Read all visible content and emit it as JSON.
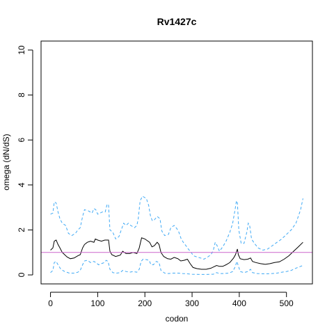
{
  "chart_data": {
    "type": "line",
    "title": "Rv1427c",
    "xlabel": "codon",
    "ylabel": "omega (dN/dS)",
    "xlim": [
      -20,
      555
    ],
    "ylim": [
      -0.4,
      10.4
    ],
    "xticks": [
      0,
      100,
      200,
      300,
      400,
      500
    ],
    "yticks": [
      0,
      2,
      4,
      6,
      8,
      10
    ],
    "reference_line": {
      "y": 1,
      "color": "#cc66cc"
    },
    "series": [
      {
        "role": "estimate",
        "color": "#000000",
        "dash": "solid",
        "points": [
          [
            0,
            1.1
          ],
          [
            5,
            1.2
          ],
          [
            8,
            1.5
          ],
          [
            12,
            1.55
          ],
          [
            16,
            1.35
          ],
          [
            20,
            1.2
          ],
          [
            25,
            1.0
          ],
          [
            30,
            0.9
          ],
          [
            35,
            0.8
          ],
          [
            42,
            0.72
          ],
          [
            50,
            0.75
          ],
          [
            58,
            0.85
          ],
          [
            63,
            0.9
          ],
          [
            68,
            1.2
          ],
          [
            72,
            1.35
          ],
          [
            78,
            1.45
          ],
          [
            85,
            1.5
          ],
          [
            92,
            1.45
          ],
          [
            95,
            1.6
          ],
          [
            100,
            1.55
          ],
          [
            108,
            1.5
          ],
          [
            115,
            1.55
          ],
          [
            120,
            1.55
          ],
          [
            123,
            1.55
          ],
          [
            126,
            1.05
          ],
          [
            130,
            0.9
          ],
          [
            138,
            0.82
          ],
          [
            143,
            0.85
          ],
          [
            148,
            0.88
          ],
          [
            153,
            1.05
          ],
          [
            160,
            0.95
          ],
          [
            168,
            0.95
          ],
          [
            175,
            1.0
          ],
          [
            183,
            0.95
          ],
          [
            188,
            1.2
          ],
          [
            193,
            1.65
          ],
          [
            200,
            1.6
          ],
          [
            210,
            1.45
          ],
          [
            215,
            1.25
          ],
          [
            220,
            1.3
          ],
          [
            226,
            1.45
          ],
          [
            230,
            1.35
          ],
          [
            234,
            1.0
          ],
          [
            240,
            0.82
          ],
          [
            248,
            0.72
          ],
          [
            255,
            0.7
          ],
          [
            262,
            0.78
          ],
          [
            270,
            0.72
          ],
          [
            276,
            0.62
          ],
          [
            283,
            0.65
          ],
          [
            290,
            0.7
          ],
          [
            296,
            0.5
          ],
          [
            302,
            0.33
          ],
          [
            310,
            0.28
          ],
          [
            320,
            0.25
          ],
          [
            330,
            0.25
          ],
          [
            340,
            0.3
          ],
          [
            348,
            0.38
          ],
          [
            352,
            0.42
          ],
          [
            358,
            0.38
          ],
          [
            365,
            0.38
          ],
          [
            372,
            0.45
          ],
          [
            380,
            0.55
          ],
          [
            388,
            0.75
          ],
          [
            392,
            0.9
          ],
          [
            396,
            1.15
          ],
          [
            398,
            0.9
          ],
          [
            402,
            0.72
          ],
          [
            410,
            0.68
          ],
          [
            418,
            0.7
          ],
          [
            424,
            0.75
          ],
          [
            428,
            0.6
          ],
          [
            435,
            0.55
          ],
          [
            445,
            0.5
          ],
          [
            455,
            0.47
          ],
          [
            465,
            0.5
          ],
          [
            475,
            0.55
          ],
          [
            485,
            0.58
          ],
          [
            495,
            0.7
          ],
          [
            505,
            0.85
          ],
          [
            515,
            1.05
          ],
          [
            525,
            1.25
          ],
          [
            535,
            1.45
          ]
        ]
      },
      {
        "role": "upper",
        "color": "#3fa9f5",
        "dash": "dashed",
        "points": [
          [
            0,
            2.7
          ],
          [
            5,
            2.75
          ],
          [
            8,
            3.25
          ],
          [
            12,
            3.2
          ],
          [
            16,
            2.8
          ],
          [
            20,
            2.5
          ],
          [
            25,
            2.3
          ],
          [
            32,
            2.2
          ],
          [
            38,
            1.85
          ],
          [
            45,
            1.75
          ],
          [
            53,
            1.85
          ],
          [
            58,
            2.0
          ],
          [
            63,
            2.1
          ],
          [
            68,
            2.6
          ],
          [
            72,
            2.9
          ],
          [
            80,
            2.85
          ],
          [
            88,
            2.75
          ],
          [
            92,
            2.95
          ],
          [
            96,
            2.9
          ],
          [
            100,
            2.7
          ],
          [
            110,
            2.8
          ],
          [
            116,
            2.8
          ],
          [
            120,
            3.15
          ],
          [
            123,
            3.1
          ],
          [
            126,
            2.0
          ],
          [
            132,
            1.9
          ],
          [
            138,
            1.6
          ],
          [
            145,
            1.7
          ],
          [
            150,
            2.0
          ],
          [
            155,
            2.3
          ],
          [
            160,
            2.2
          ],
          [
            165,
            2.3
          ],
          [
            170,
            2.2
          ],
          [
            178,
            2.1
          ],
          [
            183,
            2.2
          ],
          [
            186,
            2.5
          ],
          [
            190,
            3.3
          ],
          [
            195,
            3.5
          ],
          [
            203,
            3.4
          ],
          [
            208,
            3.1
          ],
          [
            212,
            2.6
          ],
          [
            216,
            2.4
          ],
          [
            220,
            2.45
          ],
          [
            226,
            2.6
          ],
          [
            232,
            2.5
          ],
          [
            236,
            1.95
          ],
          [
            242,
            1.75
          ],
          [
            250,
            1.8
          ],
          [
            255,
            2.1
          ],
          [
            262,
            2.2
          ],
          [
            268,
            2.05
          ],
          [
            272,
            1.9
          ],
          [
            277,
            1.6
          ],
          [
            283,
            1.4
          ],
          [
            287,
            1.3
          ],
          [
            292,
            1.15
          ],
          [
            298,
            1.0
          ],
          [
            303,
            0.85
          ],
          [
            310,
            0.8
          ],
          [
            318,
            0.75
          ],
          [
            325,
            0.7
          ],
          [
            332,
            0.78
          ],
          [
            340,
            0.9
          ],
          [
            345,
            1.1
          ],
          [
            349,
            1.45
          ],
          [
            353,
            1.3
          ],
          [
            358,
            1.05
          ],
          [
            365,
            1.25
          ],
          [
            372,
            1.5
          ],
          [
            380,
            1.9
          ],
          [
            386,
            2.3
          ],
          [
            391,
            2.9
          ],
          [
            394,
            3.3
          ],
          [
            396,
            3.2
          ],
          [
            399,
            2.0
          ],
          [
            404,
            1.4
          ],
          [
            410,
            1.4
          ],
          [
            416,
            1.9
          ],
          [
            419,
            2.3
          ],
          [
            422,
            2.2
          ],
          [
            426,
            1.6
          ],
          [
            432,
            1.4
          ],
          [
            440,
            1.2
          ],
          [
            450,
            1.1
          ],
          [
            460,
            1.15
          ],
          [
            470,
            1.3
          ],
          [
            480,
            1.45
          ],
          [
            490,
            1.6
          ],
          [
            500,
            1.8
          ],
          [
            510,
            2.0
          ],
          [
            520,
            2.3
          ],
          [
            530,
            2.9
          ],
          [
            535,
            3.4
          ]
        ]
      },
      {
        "role": "lower",
        "color": "#3fa9f5",
        "dash": "dashed",
        "points": [
          [
            0,
            0.1
          ],
          [
            5,
            0.2
          ],
          [
            8,
            0.55
          ],
          [
            12,
            0.6
          ],
          [
            16,
            0.45
          ],
          [
            22,
            0.25
          ],
          [
            30,
            0.15
          ],
          [
            40,
            0.08
          ],
          [
            50,
            0.08
          ],
          [
            58,
            0.12
          ],
          [
            63,
            0.2
          ],
          [
            68,
            0.45
          ],
          [
            72,
            0.62
          ],
          [
            78,
            0.65
          ],
          [
            85,
            0.55
          ],
          [
            92,
            0.6
          ],
          [
            96,
            0.55
          ],
          [
            102,
            0.45
          ],
          [
            108,
            0.5
          ],
          [
            114,
            0.55
          ],
          [
            118,
            0.65
          ],
          [
            122,
            0.6
          ],
          [
            126,
            0.25
          ],
          [
            132,
            0.1
          ],
          [
            140,
            0.08
          ],
          [
            148,
            0.1
          ],
          [
            153,
            0.2
          ],
          [
            160,
            0.15
          ],
          [
            168,
            0.12
          ],
          [
            175,
            0.15
          ],
          [
            183,
            0.12
          ],
          [
            188,
            0.25
          ],
          [
            192,
            0.6
          ],
          [
            196,
            0.7
          ],
          [
            203,
            0.68
          ],
          [
            209,
            0.65
          ],
          [
            213,
            0.45
          ],
          [
            218,
            0.45
          ],
          [
            224,
            0.6
          ],
          [
            230,
            0.55
          ],
          [
            234,
            0.2
          ],
          [
            242,
            0.08
          ],
          [
            250,
            0.06
          ],
          [
            260,
            0.08
          ],
          [
            270,
            0.08
          ],
          [
            280,
            0.06
          ],
          [
            290,
            0.05
          ],
          [
            300,
            0.03
          ],
          [
            315,
            0.02
          ],
          [
            330,
            0.02
          ],
          [
            345,
            0.03
          ],
          [
            352,
            0.1
          ],
          [
            358,
            0.06
          ],
          [
            368,
            0.06
          ],
          [
            378,
            0.08
          ],
          [
            386,
            0.15
          ],
          [
            391,
            0.35
          ],
          [
            395,
            0.6
          ],
          [
            398,
            0.4
          ],
          [
            402,
            0.15
          ],
          [
            410,
            0.1
          ],
          [
            418,
            0.15
          ],
          [
            424,
            0.25
          ],
          [
            428,
            0.1
          ],
          [
            438,
            0.06
          ],
          [
            450,
            0.05
          ],
          [
            460,
            0.05
          ],
          [
            470,
            0.06
          ],
          [
            480,
            0.08
          ],
          [
            490,
            0.12
          ],
          [
            500,
            0.15
          ],
          [
            510,
            0.2
          ],
          [
            520,
            0.3
          ],
          [
            530,
            0.38
          ],
          [
            535,
            0.42
          ]
        ]
      }
    ]
  }
}
